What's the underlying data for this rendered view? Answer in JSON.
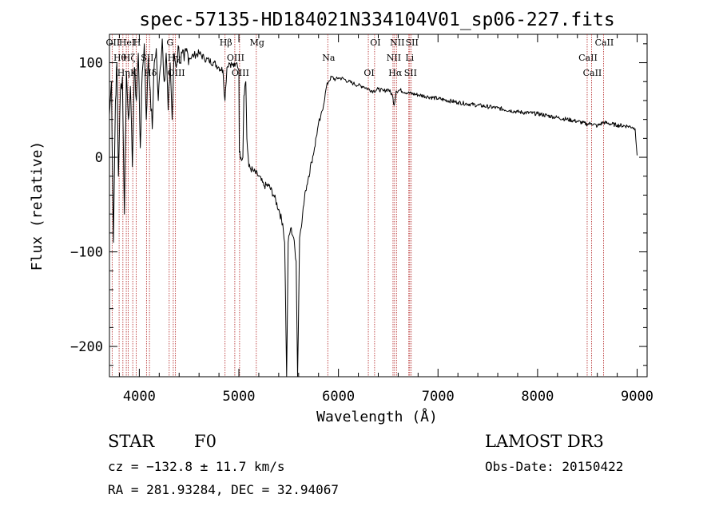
{
  "chart_data": {
    "type": "line",
    "title": "spec-57135-HD184021N334104V01_sp06-227.fits",
    "xlabel": "Wavelength (Å)",
    "ylabel": "Flux (relative)",
    "xlim": [
      3700,
      9100
    ],
    "ylim": [
      -232,
      130
    ],
    "x_ticks": [
      4000,
      5000,
      6000,
      7000,
      8000,
      9000
    ],
    "x_tick_labels": [
      "4000",
      "5000",
      "6000",
      "7000",
      "8000",
      "9000"
    ],
    "y_ticks": [
      -200,
      -100,
      0,
      100
    ],
    "y_tick_labels": [
      "−200",
      "−100",
      "0",
      "100"
    ],
    "series": [
      {
        "name": "spectrum",
        "points": [
          [
            3700,
            45
          ],
          [
            3720,
            80
          ],
          [
            3740,
            -90
          ],
          [
            3760,
            60
          ],
          [
            3775,
            100
          ],
          [
            3790,
            -20
          ],
          [
            3810,
            70
          ],
          [
            3830,
            85
          ],
          [
            3850,
            -60
          ],
          [
            3870,
            90
          ],
          [
            3890,
            40
          ],
          [
            3910,
            75
          ],
          [
            3930,
            -10
          ],
          [
            3950,
            95
          ],
          [
            3970,
            60
          ],
          [
            3990,
            110
          ],
          [
            4010,
            10
          ],
          [
            4030,
            90
          ],
          [
            4050,
            120
          ],
          [
            4070,
            40
          ],
          [
            4090,
            105
          ],
          [
            4110,
            70
          ],
          [
            4130,
            30
          ],
          [
            4150,
            100
          ],
          [
            4170,
            115
          ],
          [
            4190,
            60
          ],
          [
            4210,
            95
          ],
          [
            4230,
            125
          ],
          [
            4250,
            80
          ],
          [
            4270,
            110
          ],
          [
            4290,
            50
          ],
          [
            4310,
            100
          ],
          [
            4330,
            40
          ],
          [
            4350,
            110
          ],
          [
            4370,
            95
          ],
          [
            4390,
            118
          ],
          [
            4410,
            100
          ],
          [
            4430,
            110
          ],
          [
            4450,
            102
          ],
          [
            4470,
            112
          ],
          [
            4500,
            105
          ],
          [
            4550,
            108
          ],
          [
            4600,
            110
          ],
          [
            4650,
            105
          ],
          [
            4700,
            102
          ],
          [
            4750,
            100
          ],
          [
            4800,
            95
          ],
          [
            4840,
            92
          ],
          [
            4860,
            60
          ],
          [
            4880,
            95
          ],
          [
            4900,
            100
          ],
          [
            4930,
            98
          ],
          [
            4960,
            96
          ],
          [
            4980,
            100
          ],
          [
            5000,
            92
          ],
          [
            5005,
            5
          ],
          [
            5020,
            0
          ],
          [
            5040,
            0
          ],
          [
            5050,
            65
          ],
          [
            5060,
            75
          ],
          [
            5070,
            80
          ],
          [
            5080,
            20
          ],
          [
            5100,
            -10
          ],
          [
            5150,
            -15
          ],
          [
            5200,
            -20
          ],
          [
            5250,
            -30
          ],
          [
            5300,
            -30
          ],
          [
            5350,
            -40
          ],
          [
            5400,
            -55
          ],
          [
            5440,
            -70
          ],
          [
            5460,
            -90
          ],
          [
            5480,
            -232
          ],
          [
            5495,
            -90
          ],
          [
            5520,
            -75
          ],
          [
            5550,
            -85
          ],
          [
            5575,
            -110
          ],
          [
            5590,
            -232
          ],
          [
            5610,
            -85
          ],
          [
            5640,
            -60
          ],
          [
            5670,
            -35
          ],
          [
            5700,
            -20
          ],
          [
            5730,
            -5
          ],
          [
            5760,
            10
          ],
          [
            5790,
            30
          ],
          [
            5820,
            42
          ],
          [
            5850,
            55
          ],
          [
            5880,
            75
          ],
          [
            5900,
            80
          ],
          [
            5930,
            85
          ],
          [
            5970,
            82
          ],
          [
            6000,
            84
          ],
          [
            6050,
            83
          ],
          [
            6100,
            80
          ],
          [
            6150,
            78
          ],
          [
            6200,
            76
          ],
          [
            6250,
            75
          ],
          [
            6300,
            72
          ],
          [
            6350,
            70
          ],
          [
            6400,
            72
          ],
          [
            6450,
            70
          ],
          [
            6500,
            72
          ],
          [
            6540,
            66
          ],
          [
            6560,
            55
          ],
          [
            6580,
            70
          ],
          [
            6620,
            71
          ],
          [
            6700,
            68
          ],
          [
            6800,
            66
          ],
          [
            6900,
            64
          ],
          [
            7000,
            62
          ],
          [
            7200,
            58
          ],
          [
            7400,
            55
          ],
          [
            7600,
            52
          ],
          [
            7800,
            48
          ],
          [
            8000,
            46
          ],
          [
            8200,
            42
          ],
          [
            8400,
            38
          ],
          [
            8500,
            35
          ],
          [
            8540,
            36
          ],
          [
            8600,
            33
          ],
          [
            8660,
            37
          ],
          [
            8700,
            36
          ],
          [
            8800,
            34
          ],
          [
            8900,
            33
          ],
          [
            8950,
            32
          ],
          [
            8980,
            30
          ],
          [
            9000,
            2
          ]
        ]
      }
    ],
    "lines": [
      {
        "wl": 3727,
        "labels": [
          "OII"
        ]
      },
      {
        "wl": 3797,
        "labels": [
          "Hθ"
        ]
      },
      {
        "wl": 3835,
        "labels": [
          "Hη"
        ]
      },
      {
        "wl": 3869,
        "labels": [
          "HeI"
        ]
      },
      {
        "wl": 3889,
        "labels": [
          "Hζ"
        ]
      },
      {
        "wl": 3934,
        "labels": [
          "K"
        ]
      },
      {
        "wl": 3969,
        "labels": [
          "H"
        ]
      },
      {
        "wl": 4072,
        "labels": [
          "SII"
        ]
      },
      {
        "wl": 4102,
        "labels": [
          "Hδ"
        ]
      },
      {
        "wl": 4300,
        "labels": [
          "G"
        ]
      },
      {
        "wl": 4341,
        "labels": [
          "Hγ"
        ]
      },
      {
        "wl": 4363,
        "labels": [
          "OIII"
        ]
      },
      {
        "wl": 4861,
        "labels": [
          "Hβ"
        ]
      },
      {
        "wl": 4959,
        "labels": [
          "OIII"
        ]
      },
      {
        "wl": 5007,
        "labels": [
          "OIII"
        ]
      },
      {
        "wl": 5175,
        "labels": [
          "Mg"
        ]
      },
      {
        "wl": 5893,
        "labels": [
          "Na"
        ]
      },
      {
        "wl": 6300,
        "labels": [
          "OI"
        ]
      },
      {
        "wl": 6363,
        "labels": [
          "OI"
        ]
      },
      {
        "wl": 6548,
        "labels": [
          "NII"
        ]
      },
      {
        "wl": 6563,
        "labels": [
          "Hα"
        ]
      },
      {
        "wl": 6583,
        "labels": [
          "NII"
        ]
      },
      {
        "wl": 6707,
        "labels": [
          "Li"
        ]
      },
      {
        "wl": 6716,
        "labels": [
          "SII"
        ]
      },
      {
        "wl": 6731,
        "labels": [
          "SII"
        ]
      },
      {
        "wl": 8498,
        "labels": [
          "CaII"
        ]
      },
      {
        "wl": 8542,
        "labels": [
          "CaII"
        ]
      },
      {
        "wl": 8662,
        "labels": [
          "CaII"
        ]
      }
    ]
  },
  "info": {
    "class": "STAR",
    "subclass": "F0",
    "survey": "LAMOST DR3",
    "cz": "cz = −132.8 ± 11.7 km/s",
    "obs_date": "Obs-Date: 20150422",
    "coords": "RA = 281.93284, DEC =  32.94067"
  },
  "colors": {
    "line_marker": "#b22222",
    "spectrum": "#000000"
  }
}
